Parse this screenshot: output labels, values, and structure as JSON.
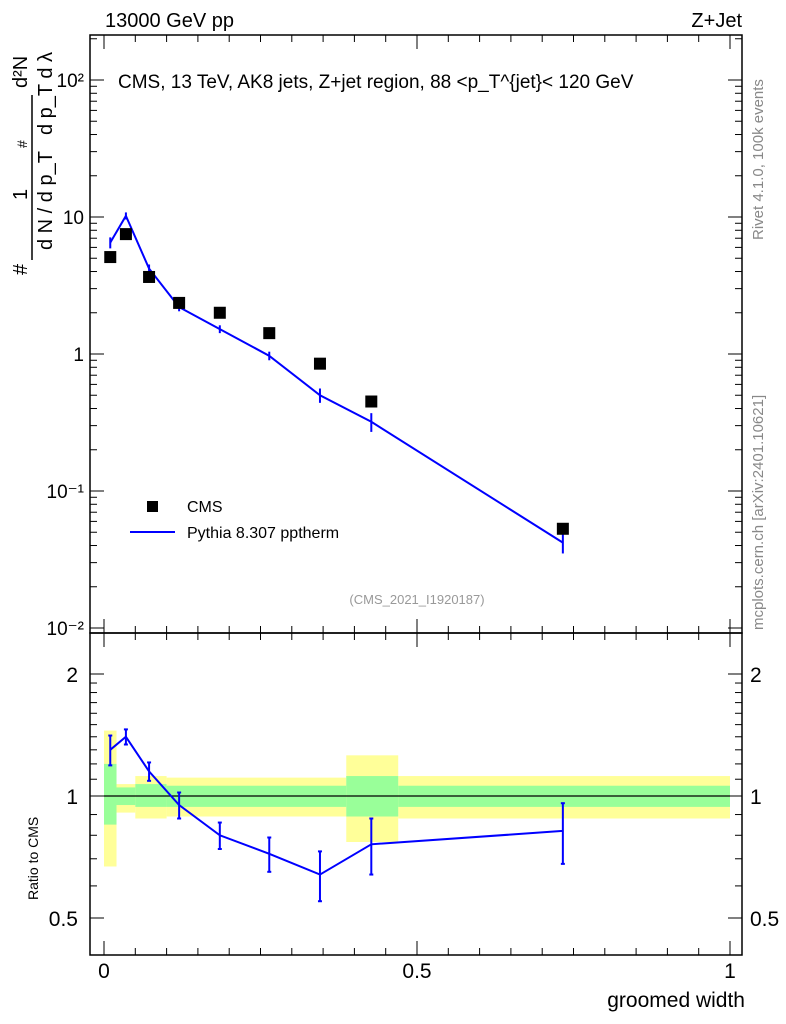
{
  "header": {
    "left": "13000 GeV pp",
    "right": "Z+Jet"
  },
  "side": {
    "rivet": "Rivet 4.1.0,  100k events",
    "mcplots": "mcplots.cern.ch [arXiv:2401.10621]"
  },
  "chart_data": [
    {
      "type": "line",
      "title": "CMS, 13 TeV, AK8 jets, Z+jet region, 88 <p_T^{jet}< 120 GeV",
      "ylabel_parts": {
        "num1": "1",
        "den1": "d N / d p_T",
        "hash": "#",
        "num2": "d²N",
        "den2": "d p_T d λ"
      },
      "yscale": "log",
      "ylim": [
        0.01,
        200
      ],
      "xlim": [
        -0.02,
        1.02
      ],
      "yticks": [
        {
          "v": 100,
          "label": "10²"
        },
        {
          "v": 10,
          "label": "10"
        },
        {
          "v": 1,
          "label": "1"
        },
        {
          "v": 0.1,
          "label": "10⁻¹"
        },
        {
          "v": 0.01,
          "label": "10⁻²"
        }
      ],
      "x": [
        0.01,
        0.035,
        0.072,
        0.12,
        0.185,
        0.264,
        0.345,
        0.427,
        0.733
      ],
      "series": [
        {
          "name": "CMS",
          "marker": "square",
          "color": "#000000",
          "values": [
            5.1,
            7.5,
            3.65,
            2.36,
            2.0,
            1.42,
            0.85,
            0.45,
            0.053
          ]
        },
        {
          "name": "Pythia 8.307 pptherm",
          "marker": "line",
          "color": "#0000ff",
          "values": [
            6.5,
            10.2,
            4.2,
            2.2,
            1.52,
            0.97,
            0.5,
            0.32,
            0.042
          ],
          "err": [
            0.6,
            0.6,
            0.3,
            0.15,
            0.1,
            0.07,
            0.06,
            0.05,
            0.007
          ]
        }
      ],
      "legend": "bottom-left",
      "annotation": "(CMS_2021_I1920187)"
    },
    {
      "type": "line",
      "ylabel": "Ratio to CMS",
      "xlabel": "groomed width",
      "yscale": "log",
      "ylim": [
        0.405,
        2.48
      ],
      "yticks": [
        {
          "v": 2,
          "label": "2"
        },
        {
          "v": 1,
          "label": "1"
        },
        {
          "v": 0.5,
          "label": "0.5"
        }
      ],
      "xticks": [
        {
          "v": 0,
          "label": "0"
        },
        {
          "v": 0.5,
          "label": "0.5"
        },
        {
          "v": 1,
          "label": "1"
        }
      ],
      "bands": [
        {
          "x0": 0,
          "x1": 0.02,
          "g": [
            0.85,
            1.2
          ],
          "y": [
            0.67,
            1.45
          ]
        },
        {
          "x0": 0.02,
          "x1": 0.05,
          "g": [
            0.95,
            1.05
          ],
          "y": [
            0.91,
            1.07
          ]
        },
        {
          "x0": 0.05,
          "x1": 0.1,
          "g": [
            0.94,
            1.07
          ],
          "y": [
            0.88,
            1.12
          ]
        },
        {
          "x0": 0.1,
          "x1": 0.387,
          "g": [
            0.94,
            1.06
          ],
          "y": [
            0.89,
            1.11
          ]
        },
        {
          "x0": 0.387,
          "x1": 0.47,
          "g": [
            0.89,
            1.12
          ],
          "y": [
            0.77,
            1.26
          ]
        },
        {
          "x0": 0.47,
          "x1": 1.0,
          "g": [
            0.94,
            1.06
          ],
          "y": [
            0.88,
            1.12
          ]
        }
      ],
      "x": [
        0.01,
        0.035,
        0.072,
        0.12,
        0.185,
        0.264,
        0.345,
        0.427,
        0.733
      ],
      "ratio": [
        1.3,
        1.4,
        1.15,
        0.95,
        0.8,
        0.72,
        0.64,
        0.76,
        0.82
      ],
      "ratio_err": [
        0.11,
        0.06,
        0.06,
        0.07,
        0.06,
        0.07,
        0.09,
        0.12,
        0.14
      ]
    }
  ]
}
